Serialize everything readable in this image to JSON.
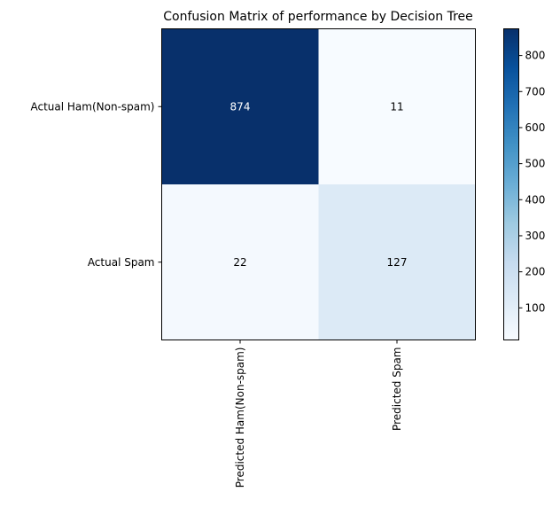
{
  "chart_data": {
    "type": "heatmap",
    "title": "Confusion Matrix of performance by Decision Tree",
    "row_labels": [
      "Actual Ham(Non-spam)",
      "Actual Spam"
    ],
    "column_labels": [
      "Predicted Ham(Non-spam)",
      "Predicted Spam"
    ],
    "values": [
      [
        874,
        11
      ],
      [
        22,
        127
      ]
    ],
    "colormap": "Blues",
    "colorbar": {
      "min": 11,
      "max": 874,
      "ticks": [
        100,
        200,
        300,
        400,
        500,
        600,
        700,
        800
      ]
    },
    "grid": false
  }
}
